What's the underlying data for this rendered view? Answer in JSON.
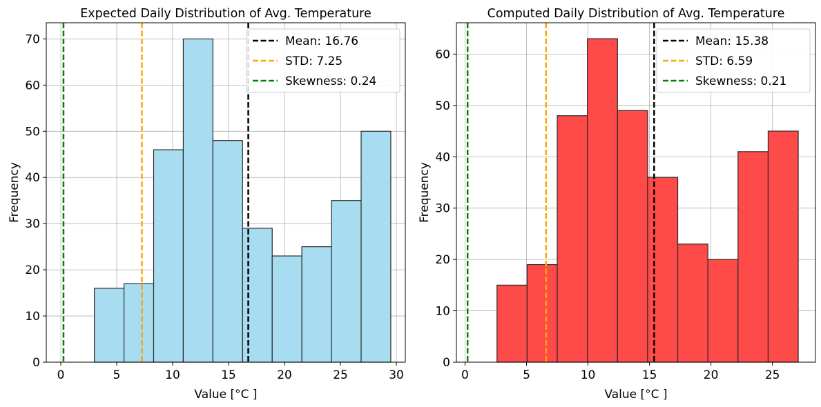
{
  "chart_data": [
    {
      "type": "bar",
      "title": "Expected Daily Distribution of Avg. Temperature",
      "xlabel": "Value [°C ]",
      "ylabel": "Frequency",
      "xlim": [
        -1.3,
        30.8
      ],
      "ylim": [
        0,
        73.5
      ],
      "xticks": [
        0,
        5,
        10,
        15,
        20,
        25,
        30
      ],
      "yticks": [
        0,
        10,
        20,
        30,
        40,
        50,
        60,
        70
      ],
      "grid": true,
      "bar_color": "#a8dcf0",
      "legend_position": "top-right",
      "bins": [
        {
          "x0": 3.0,
          "x1": 5.65,
          "count": 16
        },
        {
          "x0": 5.65,
          "x1": 8.3,
          "count": 17
        },
        {
          "x0": 8.3,
          "x1": 10.95,
          "count": 46
        },
        {
          "x0": 10.95,
          "x1": 13.6,
          "count": 70
        },
        {
          "x0": 13.6,
          "x1": 16.25,
          "count": 48
        },
        {
          "x0": 16.25,
          "x1": 18.9,
          "count": 29
        },
        {
          "x0": 18.9,
          "x1": 21.55,
          "count": 23
        },
        {
          "x0": 21.55,
          "x1": 24.2,
          "count": 25
        },
        {
          "x0": 24.2,
          "x1": 26.85,
          "count": 35
        },
        {
          "x0": 26.85,
          "x1": 29.5,
          "count": 50
        }
      ],
      "vlines": [
        {
          "label": "Mean: 16.76",
          "x": 16.76,
          "color": "#000000"
        },
        {
          "label": "STD: 7.25",
          "x": 7.25,
          "color": "#ffa500"
        },
        {
          "label": "Skewness: 0.24",
          "x": 0.24,
          "color": "#008000"
        }
      ]
    },
    {
      "type": "bar",
      "title": "Computed Daily Distribution of Avg. Temperature",
      "xlabel": "Value [°C ]",
      "ylabel": "Frequency",
      "xlim": [
        -0.7,
        28.5
      ],
      "ylim": [
        0,
        66.1
      ],
      "xticks": [
        0,
        5,
        10,
        15,
        20,
        25
      ],
      "yticks": [
        0,
        10,
        20,
        30,
        40,
        50,
        60
      ],
      "grid": true,
      "bar_color": "#ff4a4a",
      "legend_position": "top-right",
      "bins": [
        {
          "x0": 2.6,
          "x1": 5.05,
          "count": 15
        },
        {
          "x0": 5.05,
          "x1": 7.5,
          "count": 19
        },
        {
          "x0": 7.5,
          "x1": 9.95,
          "count": 48
        },
        {
          "x0": 9.95,
          "x1": 12.4,
          "count": 63
        },
        {
          "x0": 12.4,
          "x1": 14.85,
          "count": 49
        },
        {
          "x0": 14.85,
          "x1": 17.3,
          "count": 36
        },
        {
          "x0": 17.3,
          "x1": 19.75,
          "count": 23
        },
        {
          "x0": 19.75,
          "x1": 22.2,
          "count": 20
        },
        {
          "x0": 22.2,
          "x1": 24.65,
          "count": 41
        },
        {
          "x0": 24.65,
          "x1": 27.1,
          "count": 45
        }
      ],
      "vlines": [
        {
          "label": "Mean: 15.38",
          "x": 15.38,
          "color": "#000000"
        },
        {
          "label": "STD: 6.59",
          "x": 6.59,
          "color": "#ffa500"
        },
        {
          "label": "Skewness: 0.21",
          "x": 0.21,
          "color": "#008000"
        }
      ]
    }
  ]
}
